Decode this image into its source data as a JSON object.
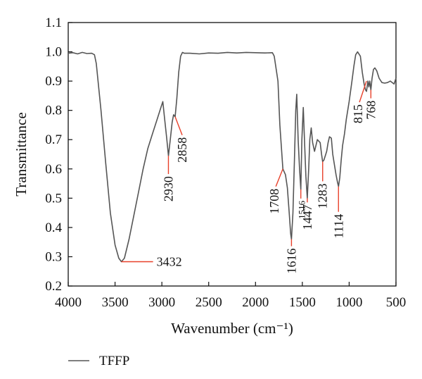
{
  "chart_data": {
    "type": "line",
    "title": "",
    "xlabel": "Wavenumber (cm⁻¹)",
    "ylabel": "Transmittance",
    "xlim": [
      4000,
      500
    ],
    "ylim": [
      0.2,
      1.1
    ],
    "x_reversed": true,
    "x_ticks": [
      4000,
      3500,
      3000,
      2500,
      2000,
      1500,
      1000,
      500
    ],
    "y_ticks": [
      0.2,
      0.3,
      0.4,
      0.5,
      0.6,
      0.7,
      0.8,
      0.9,
      1.0,
      1.1
    ],
    "grid": false,
    "legend_position": "bottom-left",
    "series": [
      {
        "name": "TFFP",
        "color": "#555555",
        "x": [
          4000,
          3950,
          3900,
          3850,
          3800,
          3750,
          3720,
          3700,
          3650,
          3600,
          3550,
          3500,
          3460,
          3432,
          3400,
          3350,
          3300,
          3250,
          3200,
          3150,
          3100,
          3050,
          3010,
          2990,
          2970,
          2950,
          2930,
          2910,
          2890,
          2875,
          2858,
          2840,
          2820,
          2800,
          2780,
          2760,
          2700,
          2600,
          2500,
          2400,
          2300,
          2200,
          2100,
          2000,
          1900,
          1820,
          1800,
          1760,
          1740,
          1708,
          1680,
          1660,
          1640,
          1625,
          1616,
          1600,
          1585,
          1570,
          1560,
          1545,
          1530,
          1516,
          1505,
          1490,
          1475,
          1462,
          1447,
          1432,
          1420,
          1405,
          1390,
          1370,
          1340,
          1310,
          1295,
          1283,
          1270,
          1255,
          1240,
          1225,
          1210,
          1190,
          1175,
          1160,
          1140,
          1125,
          1114,
          1100,
          1085,
          1070,
          1050,
          1030,
          1000,
          970,
          950,
          930,
          910,
          880,
          860,
          840,
          825,
          815,
          800,
          790,
          780,
          768,
          755,
          740,
          725,
          705,
          680,
          650,
          620,
          590,
          560,
          540,
          520,
          505,
          500
        ],
        "values": [
          0.995,
          0.997,
          0.993,
          0.998,
          0.994,
          0.995,
          0.99,
          0.96,
          0.8,
          0.62,
          0.45,
          0.34,
          0.295,
          0.283,
          0.295,
          0.36,
          0.44,
          0.52,
          0.6,
          0.67,
          0.72,
          0.77,
          0.81,
          0.83,
          0.77,
          0.71,
          0.645,
          0.7,
          0.76,
          0.785,
          0.778,
          0.84,
          0.93,
          0.985,
          0.998,
          0.995,
          0.995,
          0.993,
          0.996,
          0.995,
          0.998,
          0.996,
          0.998,
          0.997,
          0.996,
          0.997,
          0.985,
          0.9,
          0.75,
          0.6,
          0.58,
          0.535,
          0.45,
          0.38,
          0.36,
          0.45,
          0.62,
          0.8,
          0.855,
          0.7,
          0.6,
          0.53,
          0.7,
          0.81,
          0.68,
          0.575,
          0.5,
          0.6,
          0.7,
          0.74,
          0.69,
          0.66,
          0.7,
          0.69,
          0.65,
          0.625,
          0.63,
          0.645,
          0.66,
          0.69,
          0.71,
          0.705,
          0.65,
          0.62,
          0.58,
          0.555,
          0.54,
          0.57,
          0.63,
          0.68,
          0.72,
          0.77,
          0.83,
          0.9,
          0.95,
          0.99,
          1.0,
          0.985,
          0.93,
          0.89,
          0.87,
          0.865,
          0.9,
          0.88,
          0.9,
          0.87,
          0.91,
          0.94,
          0.945,
          0.935,
          0.91,
          0.895,
          0.893,
          0.895,
          0.9,
          0.895,
          0.89,
          0.905,
          0.91
        ]
      }
    ],
    "annotations": [
      {
        "text": "3432",
        "x": 3432,
        "y": 0.283,
        "orientation": "horizontal"
      },
      {
        "text": "2930",
        "x": 2930,
        "y": 0.645,
        "orientation": "vertical"
      },
      {
        "text": "2858",
        "x": 2858,
        "y": 0.778,
        "orientation": "vertical-diagonal"
      },
      {
        "text": "1708",
        "x": 1708,
        "y": 0.6,
        "orientation": "vertical-diagonal"
      },
      {
        "text": "1616",
        "x": 1616,
        "y": 0.36,
        "orientation": "vertical"
      },
      {
        "text": "1516",
        "x": 1516,
        "y": 0.53,
        "orientation": "vertical"
      },
      {
        "text": "1447",
        "x": 1447,
        "y": 0.5,
        "orientation": "vertical"
      },
      {
        "text": "1283",
        "x": 1283,
        "y": 0.625,
        "orientation": "vertical"
      },
      {
        "text": "1114",
        "x": 1114,
        "y": 0.54,
        "orientation": "vertical"
      },
      {
        "text": "815",
        "x": 815,
        "y": 0.9,
        "orientation": "vertical-diagonal"
      },
      {
        "text": "768",
        "x": 768,
        "y": 0.87,
        "orientation": "vertical"
      }
    ],
    "annotation_line_color": "#e8402a"
  }
}
